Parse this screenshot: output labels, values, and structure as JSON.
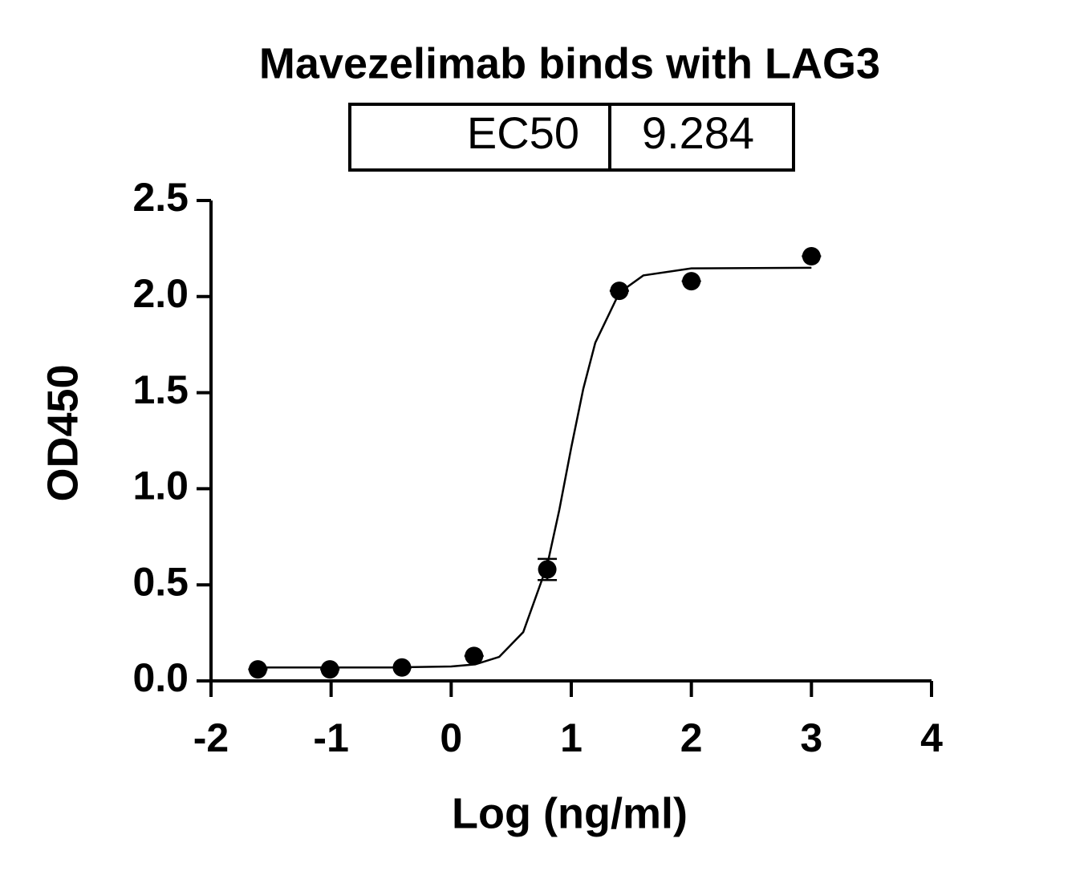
{
  "chart_data": {
    "type": "scatter",
    "title": "Mavezelimab binds with LAG3",
    "ec50_table": {
      "label": "EC50",
      "value": 9.284
    },
    "x_label": "Log (ng/ml)",
    "y_label": "OD450",
    "xlim": [
      -2,
      4
    ],
    "xticks": [
      -2,
      -1,
      0,
      1,
      2,
      3,
      4
    ],
    "ylim": [
      0,
      2.5
    ],
    "yticks": [
      {
        "value": 0,
        "label": "0.0"
      },
      {
        "value": 0.5,
        "label": "0.5"
      },
      {
        "value": 1,
        "label": "1.0"
      },
      {
        "value": 1.5,
        "label": "1.5"
      },
      {
        "value": 2,
        "label": "2.0"
      },
      {
        "value": 2.5,
        "label": "2.5"
      }
    ],
    "color": "#000000",
    "x": [
      -1.61,
      -1.01,
      -0.41,
      0.19,
      0.8,
      1.4,
      2.0,
      3.0
    ],
    "values": [
      0.06,
      0.06,
      0.07,
      0.13,
      0.58,
      2.03,
      2.08,
      2.21
    ],
    "errors": [
      0,
      0,
      0,
      0,
      0.055,
      0,
      0,
      0
    ],
    "fit": {
      "x": [
        -1.61,
        -0.5,
        0,
        0.2,
        0.4,
        0.6,
        0.8,
        0.9,
        1.0,
        1.1,
        1.2,
        1.4,
        1.6,
        2.0,
        3.0
      ],
      "values": [
        0.07,
        0.07,
        0.075,
        0.086,
        0.125,
        0.254,
        0.603,
        0.889,
        1.215,
        1.52,
        1.76,
        2.02,
        2.11,
        2.147,
        2.15
      ]
    }
  }
}
